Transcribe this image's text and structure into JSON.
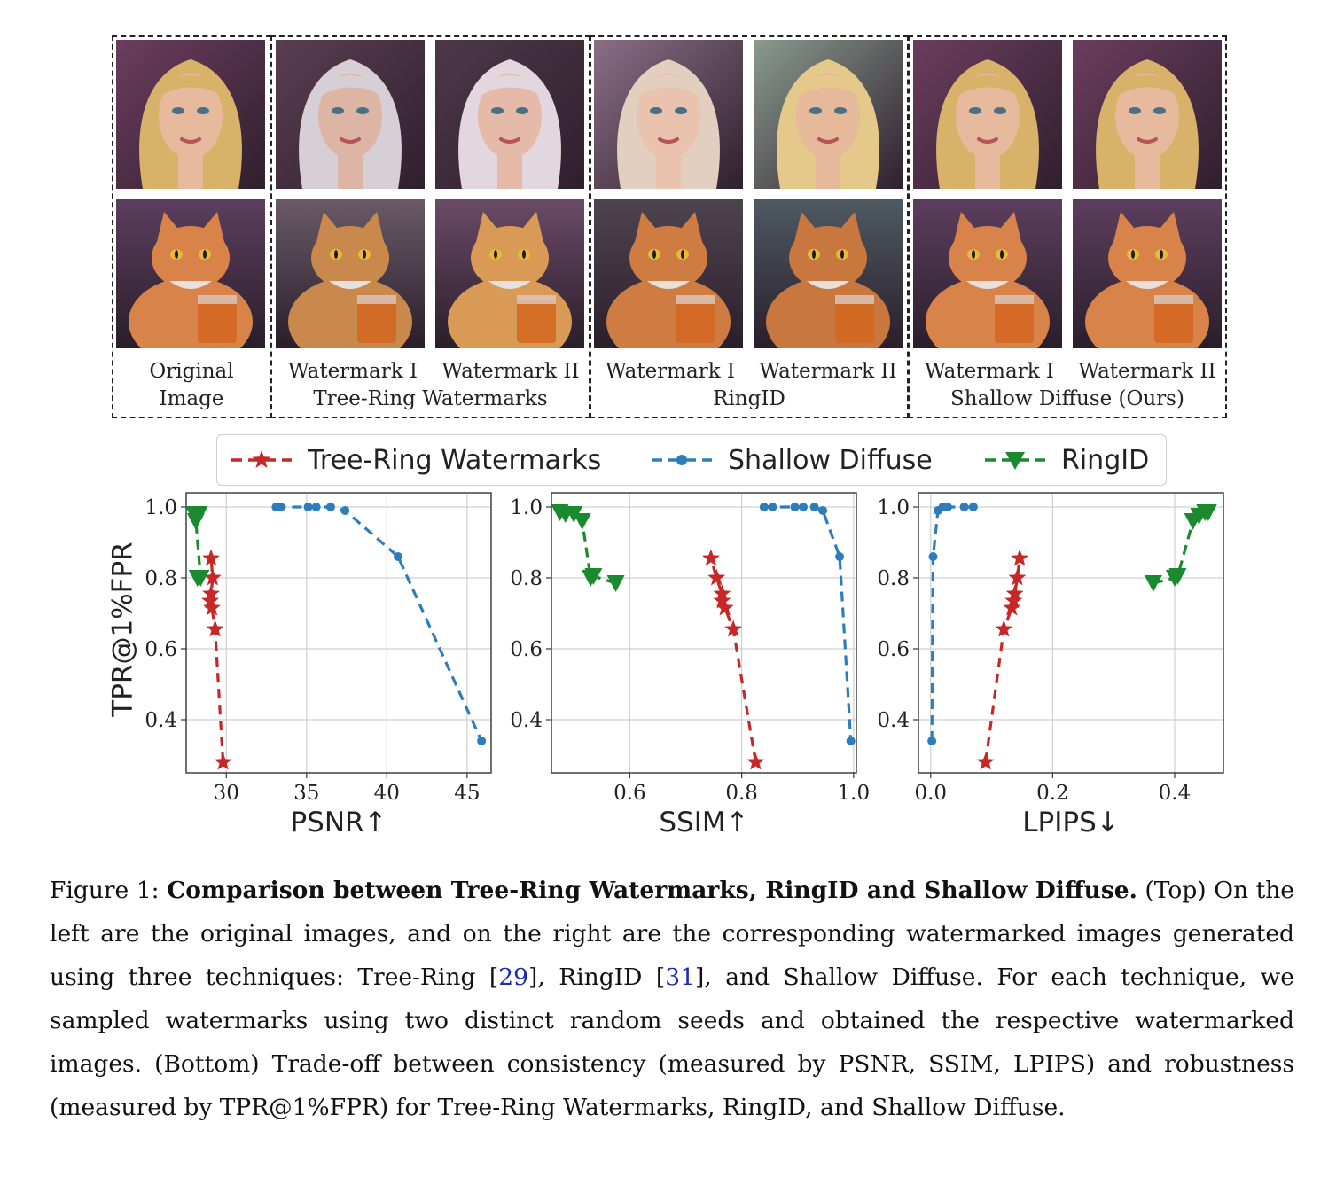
{
  "figure": {
    "groups": [
      {
        "label_top": "Original",
        "label_bottom": "Image"
      },
      {
        "label_a": "Watermark I",
        "label_b": "Watermark II",
        "label_bottom": "Tree-Ring Watermarks"
      },
      {
        "label_a": "Watermark I",
        "label_b": "Watermark II",
        "label_bottom": "RingID"
      },
      {
        "label_a": "Watermark I",
        "label_b": "Watermark II",
        "label_bottom": "Shallow Diffuse (Ours)"
      }
    ],
    "image_rows": [
      "portrait",
      "cat"
    ]
  },
  "legend": {
    "tree_ring": "Tree-Ring Watermarks",
    "shallow": "Shallow Diffuse",
    "ringid": "RingID"
  },
  "colors": {
    "tree_ring": "#c62828",
    "shallow": "#2e7dbb",
    "ringid": "#1b8a2e"
  },
  "chart_data": [
    {
      "type": "line",
      "xlabel": "PSNR↑",
      "ylabel": "TPR@1%FPR",
      "xlim": [
        27.5,
        46.5
      ],
      "ylim": [
        0.25,
        1.04
      ],
      "xticks": [
        "30",
        "35",
        "40",
        "45"
      ],
      "yticks": [
        "0.4",
        "0.6",
        "0.8",
        "1.0"
      ],
      "grid": true,
      "series": [
        {
          "name": "Tree-Ring Watermarks",
          "marker": "star",
          "points": [
            [
              29.8,
              0.28
            ],
            [
              29.3,
              0.655
            ],
            [
              29.1,
              0.715
            ],
            [
              29.0,
              0.735
            ],
            [
              29.05,
              0.755
            ],
            [
              29.15,
              0.8
            ],
            [
              29.05,
              0.855
            ]
          ]
        },
        {
          "name": "Shallow Diffuse",
          "marker": "circle",
          "points": [
            [
              33.1,
              1.0
            ],
            [
              33.4,
              1.0
            ],
            [
              35.1,
              1.0
            ],
            [
              35.6,
              1.0
            ],
            [
              36.5,
              1.0
            ],
            [
              37.4,
              0.99
            ],
            [
              40.7,
              0.86
            ],
            [
              45.9,
              0.34
            ]
          ]
        },
        {
          "name": "RingID",
          "marker": "triangle",
          "points": [
            [
              28.2,
              0.8
            ],
            [
              28.4,
              0.8
            ],
            [
              28.1,
              0.96
            ],
            [
              28.0,
              0.98
            ],
            [
              28.3,
              0.98
            ]
          ]
        }
      ]
    },
    {
      "type": "line",
      "xlabel": "SSIM↑",
      "ylabel": "",
      "xlim": [
        0.46,
        1.005
      ],
      "ylim": [
        0.25,
        1.04
      ],
      "xticks": [
        "0.6",
        "0.8",
        "1.0"
      ],
      "yticks": [
        "0.4",
        "0.6",
        "0.8",
        "1.0"
      ],
      "grid": true,
      "series": [
        {
          "name": "Tree-Ring Watermarks",
          "marker": "star",
          "points": [
            [
              0.825,
              0.28
            ],
            [
              0.785,
              0.655
            ],
            [
              0.77,
              0.715
            ],
            [
              0.765,
              0.735
            ],
            [
              0.765,
              0.755
            ],
            [
              0.755,
              0.8
            ],
            [
              0.745,
              0.855
            ]
          ]
        },
        {
          "name": "Shallow Diffuse",
          "marker": "circle",
          "points": [
            [
              0.84,
              1.0
            ],
            [
              0.855,
              1.0
            ],
            [
              0.895,
              1.0
            ],
            [
              0.91,
              1.0
            ],
            [
              0.93,
              1.0
            ],
            [
              0.945,
              0.99
            ],
            [
              0.975,
              0.86
            ],
            [
              0.995,
              0.34
            ]
          ]
        },
        {
          "name": "RingID",
          "marker": "triangle",
          "points": [
            [
              0.575,
              0.785
            ],
            [
              0.535,
              0.805
            ],
            [
              0.53,
              0.8
            ],
            [
              0.515,
              0.96
            ],
            [
              0.5,
              0.98
            ],
            [
              0.485,
              0.98
            ],
            [
              0.475,
              0.985
            ]
          ]
        }
      ]
    },
    {
      "type": "line",
      "xlabel": "LPIPS↓",
      "ylabel": "",
      "xlim": [
        -0.02,
        0.48
      ],
      "ylim": [
        0.25,
        1.04
      ],
      "xticks": [
        "0.0",
        "0.2",
        "0.4"
      ],
      "yticks": [
        "0.4",
        "0.6",
        "0.8",
        "1.0"
      ],
      "grid": true,
      "series": [
        {
          "name": "Tree-Ring Watermarks",
          "marker": "star",
          "points": [
            [
              0.09,
              0.28
            ],
            [
              0.12,
              0.655
            ],
            [
              0.133,
              0.715
            ],
            [
              0.136,
              0.735
            ],
            [
              0.138,
              0.755
            ],
            [
              0.142,
              0.8
            ],
            [
              0.146,
              0.855
            ]
          ]
        },
        {
          "name": "Shallow Diffuse",
          "marker": "circle",
          "points": [
            [
              0.002,
              0.34
            ],
            [
              0.004,
              0.86
            ],
            [
              0.012,
              0.99
            ],
            [
              0.02,
              1.0
            ],
            [
              0.028,
              1.0
            ],
            [
              0.055,
              1.0
            ],
            [
              0.07,
              1.0
            ]
          ]
        },
        {
          "name": "RingID",
          "marker": "triangle",
          "points": [
            [
              0.365,
              0.785
            ],
            [
              0.4,
              0.8
            ],
            [
              0.405,
              0.805
            ],
            [
              0.43,
              0.96
            ],
            [
              0.44,
              0.975
            ],
            [
              0.45,
              0.985
            ],
            [
              0.455,
              0.985
            ]
          ]
        }
      ]
    }
  ],
  "caption": {
    "prefix": "Figure 1:",
    "bold": "Comparison between Tree-Ring Watermarks, RingID and Shallow Diffuse.",
    "t1": " (Top) On the left are the original images, and on the right are the corresponding watermarked images generated using three techniques: Tree-Ring [",
    "ref1": "29",
    "t2": "], RingID [",
    "ref2": "31",
    "t3": "], and Shallow Diffuse. For each technique, we sampled watermarks using two distinct random seeds and obtained the respective watermarked images. (Bottom) Trade-off between consistency (measured by PSNR, SSIM, LPIPS) and robustness (measured by TPR@1%FPR) for Tree-Ring Watermarks, RingID, and Shallow Diffuse."
  }
}
